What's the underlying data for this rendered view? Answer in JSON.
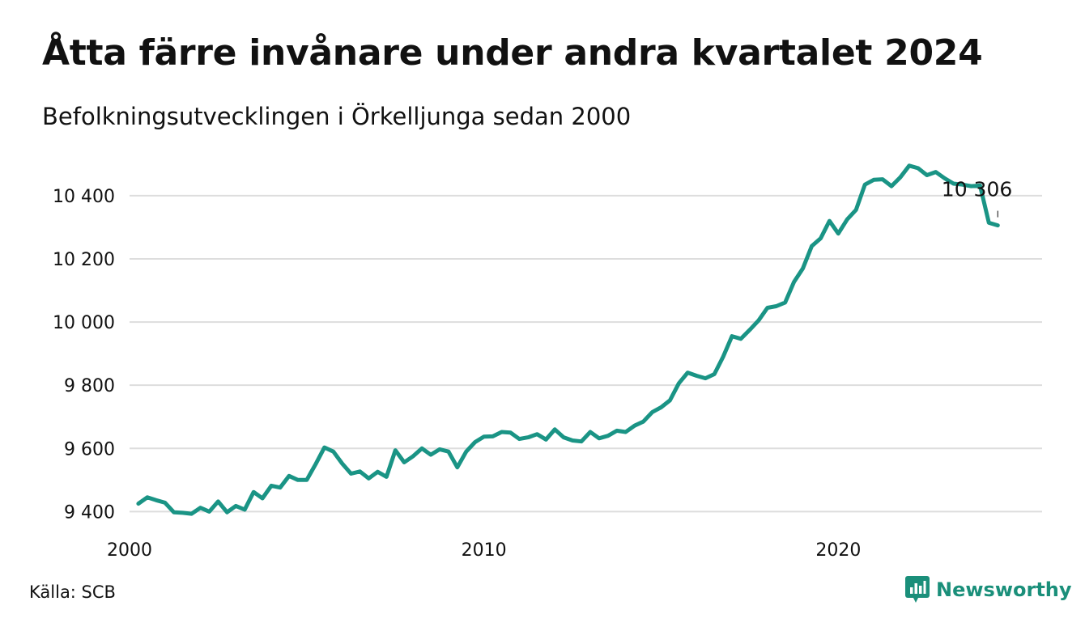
{
  "title": "Åtta färre invånare under andra kvartalet 2024",
  "subtitle": "Befolkningsutvecklingen i Örkelljunga sedan 2000",
  "source": "Källa: SCB",
  "brand": {
    "name": "Newsworthy",
    "icon": "newsworthy-logo-icon",
    "color": "#1a8f7a"
  },
  "chart_data": {
    "type": "line",
    "title": "Åtta färre invånare under andra kvartalet 2024",
    "subtitle": "Befolkningsutvecklingen i Örkelljunga sedan 2000",
    "xlim": [
      2000,
      2025.75
    ],
    "ylim": [
      9360,
      10520
    ],
    "yticks": [
      9400,
      9600,
      9800,
      10000,
      10200,
      10400
    ],
    "ytick_labels": [
      "9 400",
      "9 600",
      "9 800",
      "10 000",
      "10 200",
      "10 400"
    ],
    "xticks": [
      2000,
      2010,
      2020
    ],
    "xtick_labels": [
      "2000",
      "2010",
      "2020"
    ],
    "grid": true,
    "line_color": "#1a9485",
    "last_value_label": "10 306",
    "series": [
      {
        "x": [
          2000.25,
          2000.5,
          2000.75,
          2001.0,
          2001.25,
          2001.5,
          2001.75,
          2002.0,
          2002.25,
          2002.5,
          2002.75,
          2003.0,
          2003.25,
          2003.5,
          2003.75,
          2004.0,
          2004.25,
          2004.5,
          2004.75,
          2005.0,
          2005.25,
          2005.5,
          2005.75,
          2006.0,
          2006.25,
          2006.5,
          2006.75,
          2007.0,
          2007.25,
          2007.5,
          2007.75,
          2008.0,
          2008.25,
          2008.5,
          2008.75,
          2009.0,
          2009.25,
          2009.5,
          2009.75,
          2010.0,
          2010.25,
          2010.5,
          2010.75,
          2011.0,
          2011.25,
          2011.5,
          2011.75,
          2012.0,
          2012.25,
          2012.5,
          2012.75,
          2013.0,
          2013.25,
          2013.5,
          2013.75,
          2014.0,
          2014.25,
          2014.5,
          2014.75,
          2015.0,
          2015.25,
          2015.5,
          2015.75,
          2016.0,
          2016.25,
          2016.5,
          2016.75,
          2017.0,
          2017.25,
          2017.5,
          2017.75,
          2018.0,
          2018.25,
          2018.5,
          2018.75,
          2019.0,
          2019.25,
          2019.5,
          2019.75,
          2020.0,
          2020.25,
          2020.5,
          2020.75,
          2021.0,
          2021.25,
          2021.5,
          2021.75,
          2022.0,
          2022.25,
          2022.5,
          2022.75,
          2023.0,
          2023.25,
          2023.5,
          2023.75,
          2024.0,
          2024.25,
          2024.5
        ],
        "y": [
          9425,
          9445,
          9436,
          9428,
          9398,
          9396,
          9393,
          9412,
          9400,
          9432,
          9398,
          9418,
          9406,
          9462,
          9442,
          9482,
          9476,
          9513,
          9500,
          9500,
          9550,
          9603,
          9590,
          9552,
          9520,
          9527,
          9505,
          9526,
          9510,
          9594,
          9556,
          9575,
          9600,
          9580,
          9597,
          9590,
          9540,
          9590,
          9620,
          9637,
          9638,
          9652,
          9650,
          9630,
          9635,
          9645,
          9628,
          9660,
          9635,
          9625,
          9622,
          9652,
          9632,
          9640,
          9656,
          9652,
          9672,
          9685,
          9715,
          9730,
          9752,
          9806,
          9840,
          9830,
          9822,
          9835,
          9890,
          9955,
          9947,
          9975,
          10005,
          10045,
          10050,
          10062,
          10127,
          10170,
          10240,
          10265,
          10320,
          10280,
          10325,
          10355,
          10435,
          10450,
          10452,
          10430,
          10458,
          10495,
          10487,
          10465,
          10475,
          10455,
          10438,
          10435,
          10430,
          10432,
          10314,
          10306
        ]
      }
    ]
  }
}
